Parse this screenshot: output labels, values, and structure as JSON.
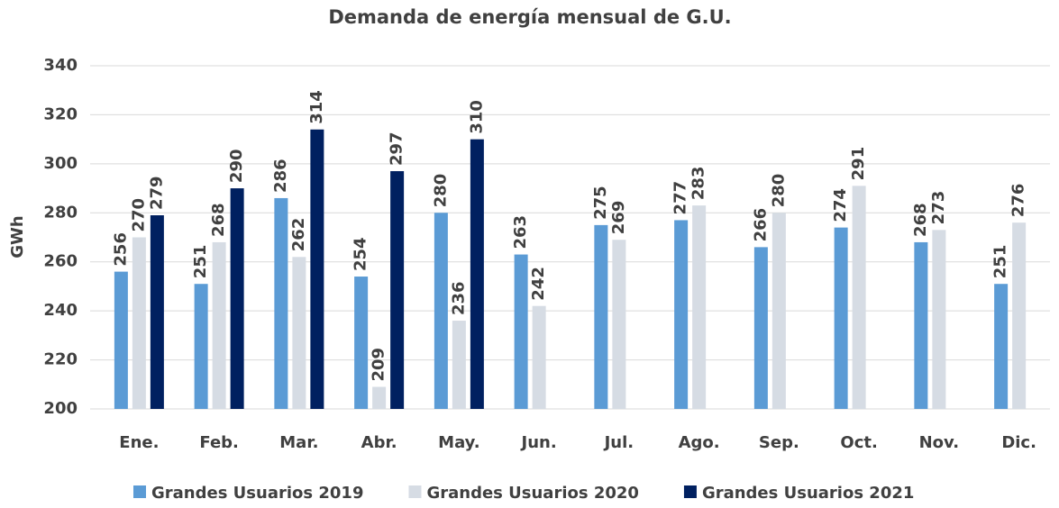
{
  "chart_data": {
    "type": "bar",
    "title": "Demanda de energía mensual de G.U.",
    "y_label": "GWh",
    "categories": [
      "Ene.",
      "Feb.",
      "Mar.",
      "Abr.",
      "May.",
      "Jun.",
      "Jul.",
      "Ago.",
      "Sep.",
      "Oct.",
      "Nov.",
      "Dic."
    ],
    "series": [
      {
        "name": "Grandes Usuarios 2019",
        "color": "#5b9bd5",
        "values": [
          256,
          251,
          286,
          254,
          280,
          263,
          275,
          277,
          266,
          274,
          268,
          251
        ]
      },
      {
        "name": "Grandes Usuarios 2020",
        "color": "#d6dce4",
        "values": [
          270,
          268,
          262,
          209,
          236,
          242,
          269,
          283,
          280,
          291,
          273,
          276
        ]
      },
      {
        "name": "Grandes Usuarios 2021",
        "color": "#002060",
        "values": [
          279,
          290,
          314,
          297,
          310,
          null,
          null,
          null,
          null,
          null,
          null,
          null
        ]
      }
    ],
    "ylim": [
      200,
      340
    ],
    "yticks": [
      200,
      220,
      240,
      260,
      280,
      300,
      320,
      340
    ],
    "grid": true,
    "legend": "bottom"
  }
}
